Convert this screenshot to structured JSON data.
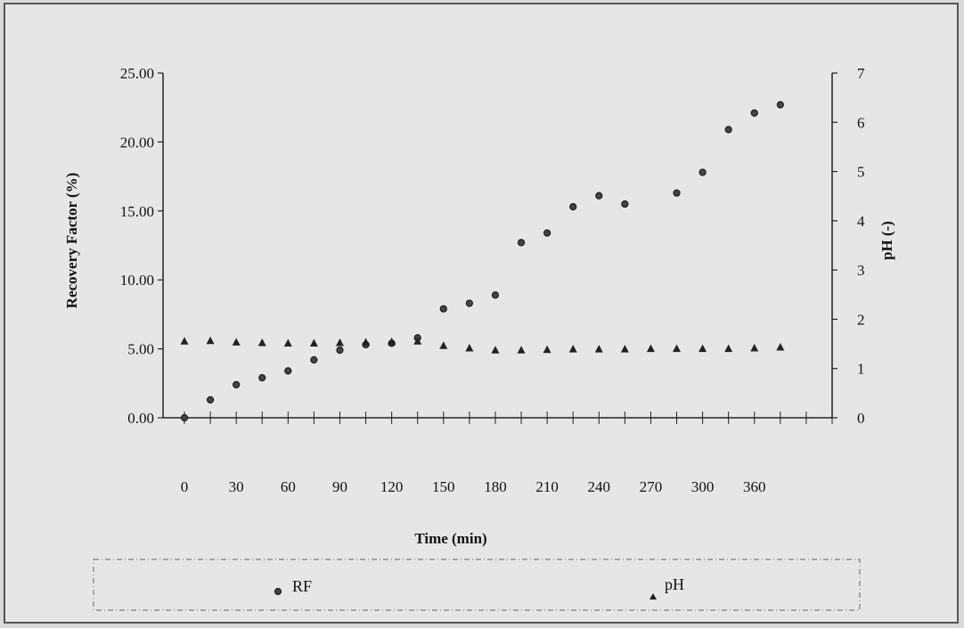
{
  "chart_data": {
    "type": "scatter",
    "title": "",
    "xlabel": "Time (min)",
    "ylabel_left": "Recovery Factor (%)",
    "ylabel_right": "pH (-)",
    "xlim": [
      0,
      375
    ],
    "ylim_left": [
      0,
      25
    ],
    "ylim_right": [
      0,
      7
    ],
    "x_tick_labels": [
      "0",
      "30",
      "60",
      "90",
      "120",
      "150",
      "180",
      "210",
      "240",
      "270",
      "300",
      "360"
    ],
    "y_left_tick_labels": [
      "0.00",
      "5.00",
      "10.00",
      "15.00",
      "20.00",
      "25.00"
    ],
    "y_right_tick_labels": [
      "0",
      "1",
      "2",
      "3",
      "4",
      "5",
      "6",
      "7"
    ],
    "grid": false,
    "legend_position": "bottom",
    "series": [
      {
        "name": "RF",
        "axis": "left",
        "marker": "circle",
        "x": [
          0,
          15,
          30,
          45,
          60,
          75,
          90,
          105,
          120,
          135,
          150,
          165,
          180,
          195,
          210,
          225,
          240,
          255,
          285,
          300,
          315,
          330,
          345
        ],
        "y": [
          0.0,
          1.3,
          2.4,
          2.9,
          3.4,
          4.2,
          4.9,
          5.3,
          5.4,
          5.8,
          7.9,
          8.3,
          8.9,
          12.7,
          13.4,
          15.3,
          16.1,
          15.5,
          16.3,
          17.8,
          20.9,
          22.1,
          22.7
        ]
      },
      {
        "name": "pH",
        "axis": "right",
        "marker": "triangle",
        "x": [
          0,
          15,
          30,
          45,
          60,
          75,
          90,
          105,
          120,
          135,
          150,
          165,
          180,
          195,
          210,
          225,
          240,
          255,
          270,
          285,
          300,
          315,
          330,
          345
        ],
        "y": [
          1.55,
          1.56,
          1.53,
          1.52,
          1.51,
          1.51,
          1.52,
          1.53,
          1.54,
          1.55,
          1.46,
          1.41,
          1.37,
          1.37,
          1.38,
          1.39,
          1.39,
          1.39,
          1.4,
          1.4,
          1.4,
          1.4,
          1.41,
          1.43
        ]
      }
    ]
  },
  "legend": {
    "items": [
      {
        "label": "RF",
        "marker": "circle"
      },
      {
        "label": "pH",
        "marker": "triangle"
      }
    ]
  }
}
